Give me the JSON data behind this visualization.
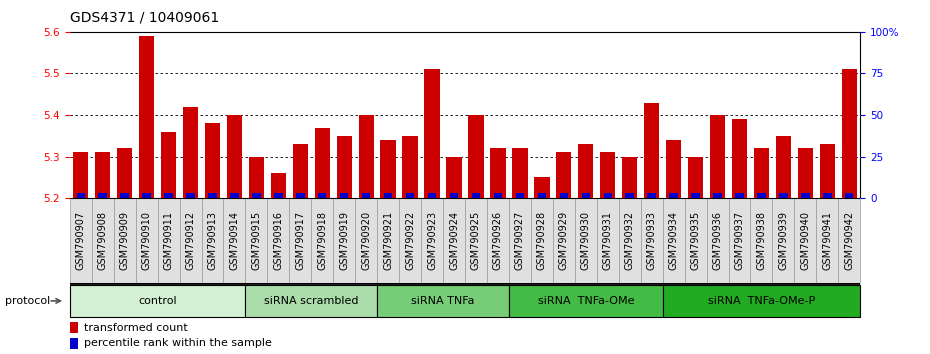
{
  "title": "GDS4371 / 10409061",
  "samples": [
    "GSM790907",
    "GSM790908",
    "GSM790909",
    "GSM790910",
    "GSM790911",
    "GSM790912",
    "GSM790913",
    "GSM790914",
    "GSM790915",
    "GSM790916",
    "GSM790917",
    "GSM790918",
    "GSM790919",
    "GSM790920",
    "GSM790921",
    "GSM790922",
    "GSM790923",
    "GSM790924",
    "GSM790925",
    "GSM790926",
    "GSM790927",
    "GSM790928",
    "GSM790929",
    "GSM790930",
    "GSM790931",
    "GSM790932",
    "GSM790933",
    "GSM790934",
    "GSM790935",
    "GSM790936",
    "GSM790937",
    "GSM790938",
    "GSM790939",
    "GSM790940",
    "GSM790941",
    "GSM790942"
  ],
  "red_values": [
    5.31,
    5.31,
    5.32,
    5.59,
    5.36,
    5.42,
    5.38,
    5.4,
    5.3,
    5.26,
    5.33,
    5.37,
    5.35,
    5.4,
    5.34,
    5.35,
    5.51,
    5.3,
    5.4,
    5.32,
    5.32,
    5.25,
    5.31,
    5.33,
    5.31,
    5.3,
    5.43,
    5.34,
    5.3,
    5.4,
    5.39,
    5.32,
    5.35,
    5.32,
    5.33,
    5.51
  ],
  "blue_values": [
    2,
    3,
    3,
    3,
    3,
    3,
    3,
    3,
    3,
    2,
    2,
    2,
    2,
    2,
    2,
    2,
    2,
    2,
    2,
    2,
    2,
    2,
    2,
    2,
    2,
    2,
    3,
    2,
    2,
    2,
    2,
    2,
    2,
    2,
    2,
    3
  ],
  "ylim_left": [
    5.2,
    5.6
  ],
  "ylim_right": [
    0,
    100
  ],
  "yticks_left": [
    5.2,
    5.3,
    5.4,
    5.5,
    5.6
  ],
  "yticks_right": [
    0,
    25,
    50,
    75,
    100
  ],
  "ytick_right_labels": [
    "0",
    "25",
    "50",
    "75",
    "100%"
  ],
  "groups": [
    {
      "label": "control",
      "start": 0,
      "end": 8,
      "color": "#d4f0d4"
    },
    {
      "label": "siRNA scrambled",
      "start": 8,
      "end": 14,
      "color": "#aaddaa"
    },
    {
      "label": "siRNA TNFa",
      "start": 14,
      "end": 20,
      "color": "#77cc77"
    },
    {
      "label": "siRNA  TNFa-OMe",
      "start": 20,
      "end": 27,
      "color": "#44bb44"
    },
    {
      "label": "siRNA  TNFa-OMe-P",
      "start": 27,
      "end": 36,
      "color": "#22aa22"
    }
  ],
  "baseline": 5.2,
  "red_color": "#cc0000",
  "blue_color": "#0000cc",
  "tick_label_color": "red",
  "right_tick_color": "blue",
  "title_fontsize": 10,
  "tick_fontsize": 7.5,
  "group_label_fontsize": 8,
  "legend_fontsize": 8,
  "xtick_fontsize": 7,
  "bar_width": 0.7
}
